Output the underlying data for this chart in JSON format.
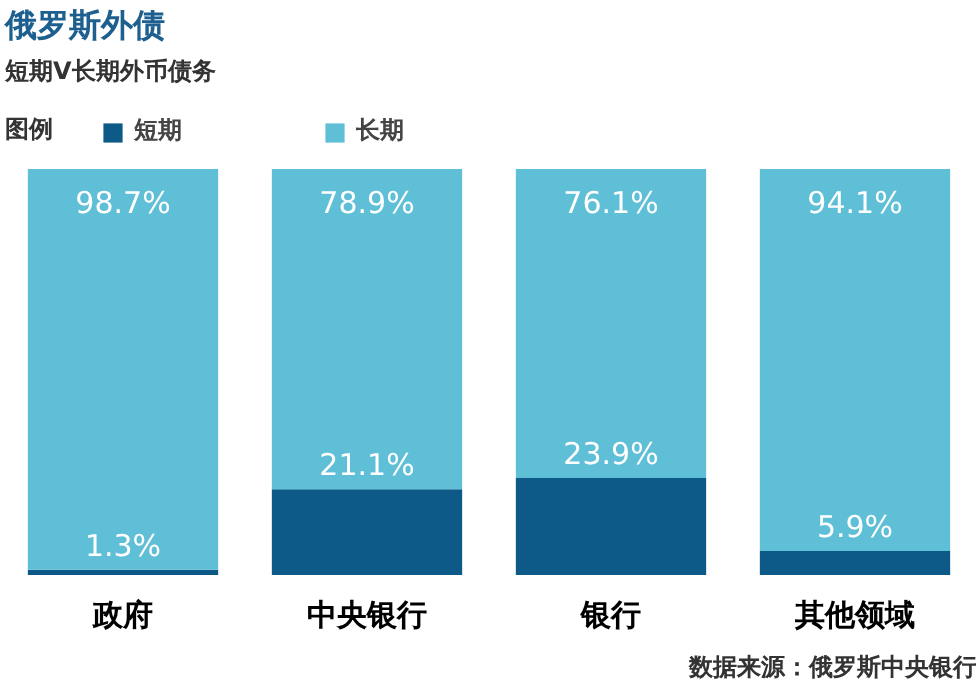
{
  "chart_data": {
    "type": "bar",
    "title": "俄罗斯外债",
    "subtitle": "短期V长期外币债务",
    "legend_title": "图例",
    "categories": [
      "政府",
      "中央银行",
      "银行",
      "其他领域"
    ],
    "stacked": true,
    "ylim": [
      0,
      100
    ],
    "tick_labels": "x",
    "grid": false,
    "legend": "top left",
    "series": [
      {
        "name": "短期",
        "color": "#0d5a88",
        "values": [
          1.3,
          21.1,
          23.9,
          5.9
        ],
        "value_labels": [
          "1.3%",
          "21.1%",
          "23.9%",
          "5.9%"
        ]
      },
      {
        "name": "长期",
        "color": "#5fbfd7",
        "values": [
          98.7,
          78.9,
          76.1,
          94.1
        ],
        "value_labels": [
          "98.7%",
          "78.9%",
          "76.1%",
          "94.1%"
        ]
      }
    ],
    "annotations": [
      "数据来源：俄罗斯中央银行"
    ]
  }
}
